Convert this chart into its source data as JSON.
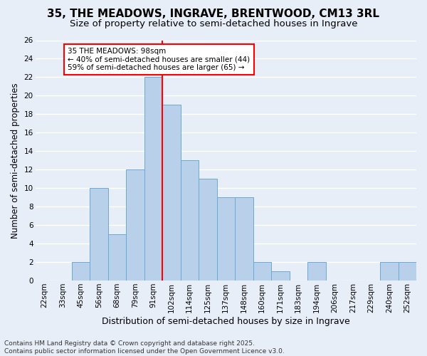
{
  "title1": "35, THE MEADOWS, INGRAVE, BRENTWOOD, CM13 3RL",
  "title2": "Size of property relative to semi-detached houses in Ingrave",
  "xlabel": "Distribution of semi-detached houses by size in Ingrave",
  "ylabel": "Number of semi-detached properties",
  "footnote": "Contains HM Land Registry data © Crown copyright and database right 2025.\nContains public sector information licensed under the Open Government Licence v3.0.",
  "categories": [
    "22sqm",
    "33sqm",
    "45sqm",
    "56sqm",
    "68sqm",
    "79sqm",
    "91sqm",
    "102sqm",
    "114sqm",
    "125sqm",
    "137sqm",
    "148sqm",
    "160sqm",
    "171sqm",
    "183sqm",
    "194sqm",
    "206sqm",
    "217sqm",
    "229sqm",
    "240sqm",
    "252sqm"
  ],
  "values": [
    0,
    0,
    2,
    10,
    5,
    12,
    22,
    19,
    13,
    11,
    9,
    9,
    2,
    1,
    0,
    2,
    0,
    0,
    0,
    2,
    2
  ],
  "bar_color": "#b8d0ea",
  "bar_edge_color": "#6aaad4",
  "vline_x": 6.5,
  "vline_color": "red",
  "annotation_text": "35 THE MEADOWS: 98sqm\n← 40% of semi-detached houses are smaller (44)\n59% of semi-detached houses are larger (65) →",
  "annotation_box_color": "white",
  "annotation_edge_color": "red",
  "ylim": [
    0,
    26
  ],
  "yticks": [
    0,
    2,
    4,
    6,
    8,
    10,
    12,
    14,
    16,
    18,
    20,
    22,
    24,
    26
  ],
  "background_color": "#e8eef8",
  "grid_color": "white",
  "title1_fontsize": 11,
  "title2_fontsize": 9.5,
  "xlabel_fontsize": 9,
  "ylabel_fontsize": 8.5,
  "tick_fontsize": 7.5,
  "annotation_fontsize": 7.5,
  "footnote_fontsize": 6.5
}
